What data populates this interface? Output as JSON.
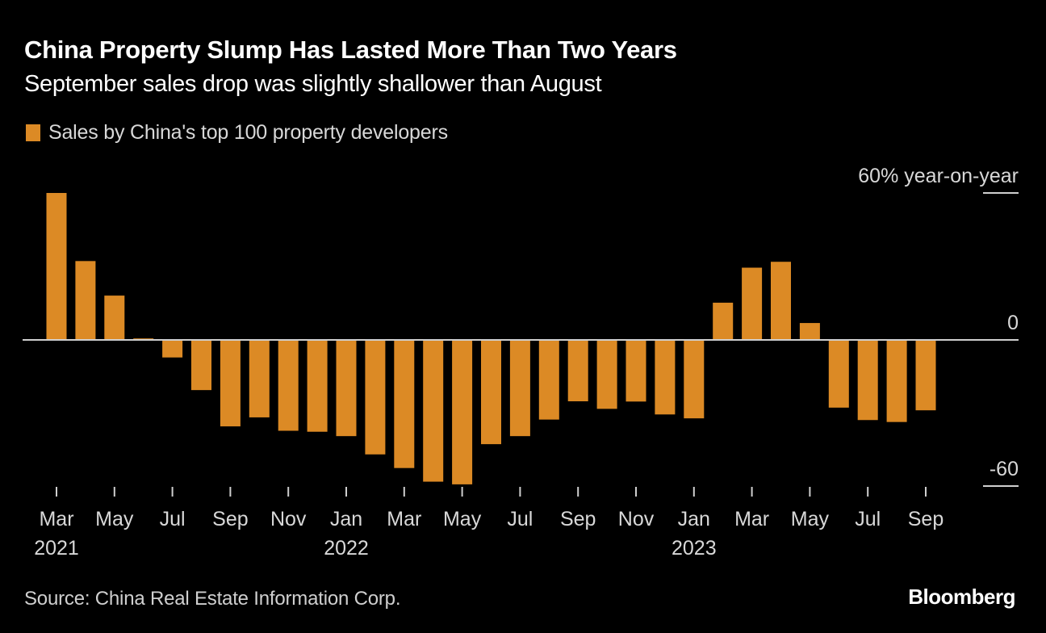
{
  "header": {
    "title": "China Property Slump Has Lasted More Than Two Years",
    "subtitle": "September sales drop was slightly shallower than August"
  },
  "footer": {
    "source": "Source: China Real Estate Information Corp.",
    "brand": "Bloomberg"
  },
  "colors": {
    "bar": "#dc8a25",
    "background": "#000000",
    "axis": "#cfcfcf",
    "text": "#d8d8d8"
  },
  "chart_data": {
    "type": "bar",
    "title": "China Property Slump Has Lasted More Than Two Years",
    "subtitle": "September sales drop was slightly shallower than August",
    "legend": [
      {
        "name": "Sales by China's top 100 property developers",
        "color": "#dc8a25"
      }
    ],
    "legend_position": "top-left",
    "xlabel": "",
    "ylabel": "% year-on-year",
    "ylim": [
      -60,
      60
    ],
    "yticks": [
      {
        "value": 60,
        "label": "60% year-on-year"
      },
      {
        "value": 0,
        "label": "0"
      },
      {
        "value": -60,
        "label": "-60"
      }
    ],
    "y_axis_side": "right",
    "grid": false,
    "categories": [
      "Mar 2021",
      "Apr 2021",
      "May 2021",
      "Jun 2021",
      "Jul 2021",
      "Aug 2021",
      "Sep 2021",
      "Oct 2021",
      "Nov 2021",
      "Dec 2021",
      "Jan 2022",
      "Feb 2022",
      "Mar 2022",
      "Apr 2022",
      "May 2022",
      "Jun 2022",
      "Jul 2022",
      "Aug 2022",
      "Sep 2022",
      "Oct 2022",
      "Nov 2022",
      "Dec 2022",
      "Jan 2023",
      "Feb 2023",
      "Mar 2023",
      "Apr 2023",
      "May 2023",
      "Jun 2023",
      "Jul 2023",
      "Aug 2023",
      "Sep 2023"
    ],
    "series": [
      {
        "name": "Sales by China's top 100 property developers",
        "values": [
          60,
          32.2,
          18.1,
          0.6,
          -7.2,
          -20.6,
          -35.5,
          -31.8,
          -37.3,
          -37.7,
          -39.5,
          -47.0,
          -52.6,
          -58.2,
          -59.3,
          -42.8,
          -39.5,
          -32.7,
          -25.2,
          -28.3,
          -25.3,
          -30.6,
          -32.2,
          15.2,
          29.5,
          31.9,
          6.9,
          -27.8,
          -32.9,
          -33.7,
          -28.9
        ]
      }
    ],
    "xticks": [
      {
        "index": 0,
        "label": "Mar",
        "year": "2021"
      },
      {
        "index": 2,
        "label": "May"
      },
      {
        "index": 4,
        "label": "Jul"
      },
      {
        "index": 6,
        "label": "Sep"
      },
      {
        "index": 8,
        "label": "Nov"
      },
      {
        "index": 10,
        "label": "Jan",
        "year": "2022"
      },
      {
        "index": 12,
        "label": "Mar"
      },
      {
        "index": 14,
        "label": "May"
      },
      {
        "index": 16,
        "label": "Jul"
      },
      {
        "index": 18,
        "label": "Sep"
      },
      {
        "index": 20,
        "label": "Nov"
      },
      {
        "index": 22,
        "label": "Jan",
        "year": "2023"
      },
      {
        "index": 24,
        "label": "Mar"
      },
      {
        "index": 26,
        "label": "May"
      },
      {
        "index": 28,
        "label": "Jul"
      },
      {
        "index": 30,
        "label": "Sep"
      }
    ]
  }
}
